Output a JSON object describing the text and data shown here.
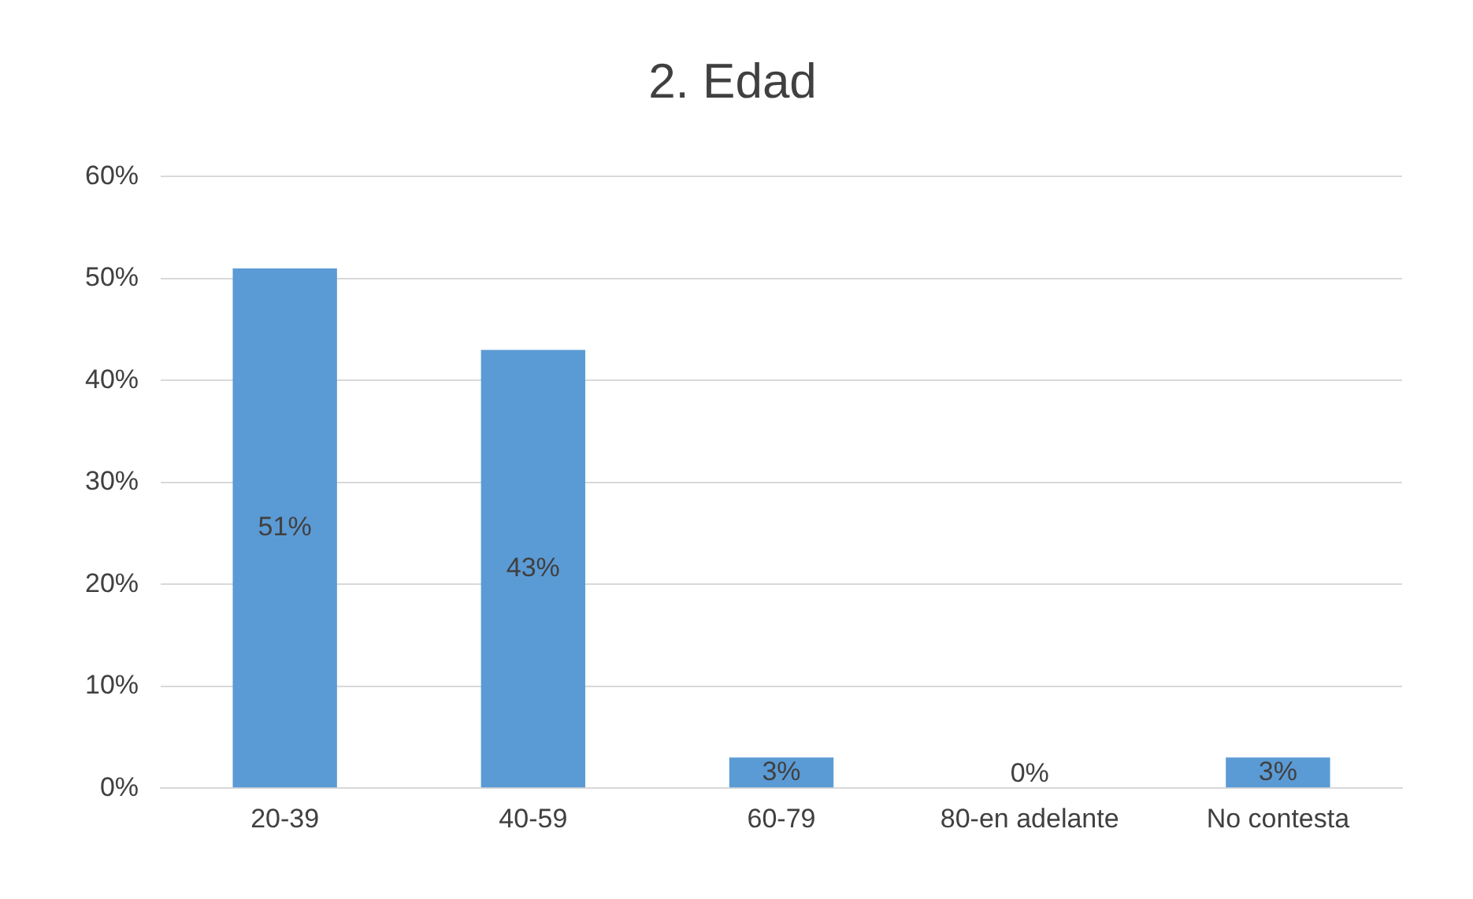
{
  "chart_data": {
    "type": "bar",
    "title": "2. Edad",
    "categories": [
      "20-39",
      "40-59",
      "60-79",
      "80-en adelante",
      "No contesta"
    ],
    "values": [
      51,
      43,
      3,
      0,
      3
    ],
    "value_labels": [
      "51%",
      "43%",
      "3%",
      "0%",
      "3%"
    ],
    "color": "#5b9bd5",
    "ylim": [
      0,
      60
    ],
    "yticks": [
      {
        "value": 0,
        "label": "0%"
      },
      {
        "value": 10,
        "label": "10%"
      },
      {
        "value": 20,
        "label": "20%"
      },
      {
        "value": 30,
        "label": "30%"
      },
      {
        "value": 40,
        "label": "40%"
      },
      {
        "value": 50,
        "label": "50%"
      },
      {
        "value": 60,
        "label": "60%"
      }
    ],
    "grid": "y",
    "legend": false
  }
}
